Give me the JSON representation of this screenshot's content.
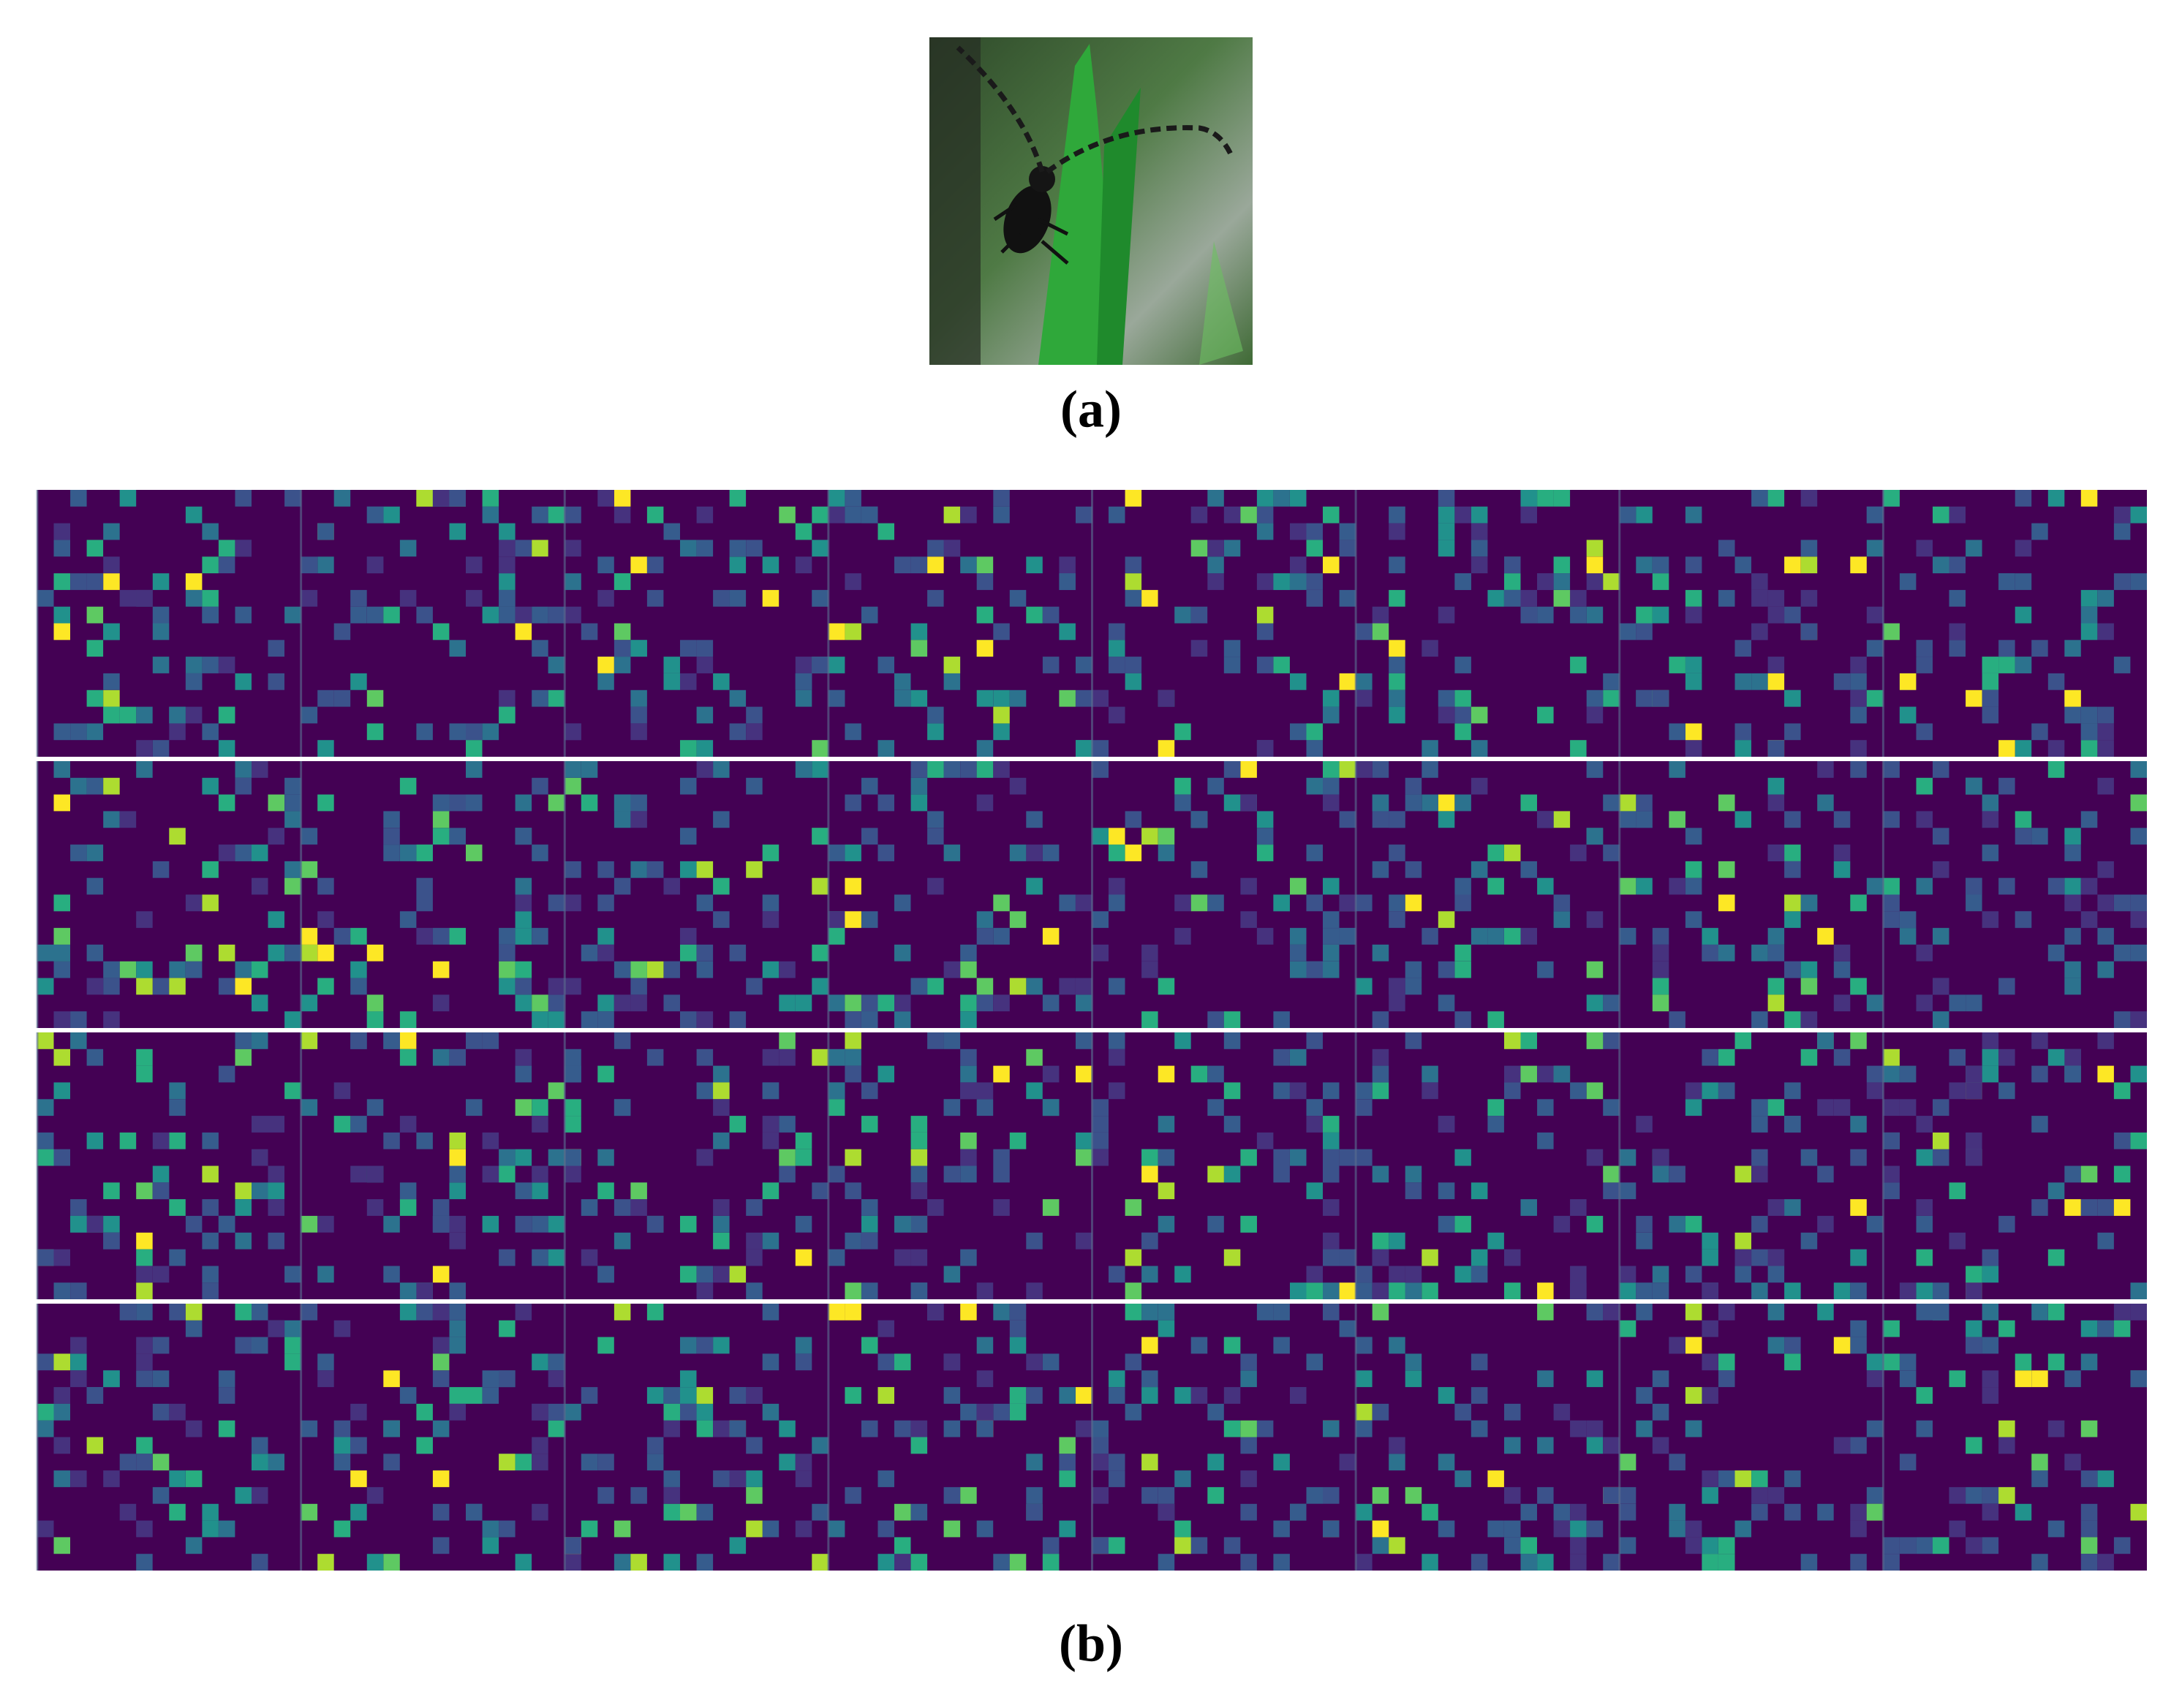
{
  "figure": {
    "panel_a": {
      "label": "(a)"
    },
    "panel_b": {
      "label": "(b)"
    }
  }
}
